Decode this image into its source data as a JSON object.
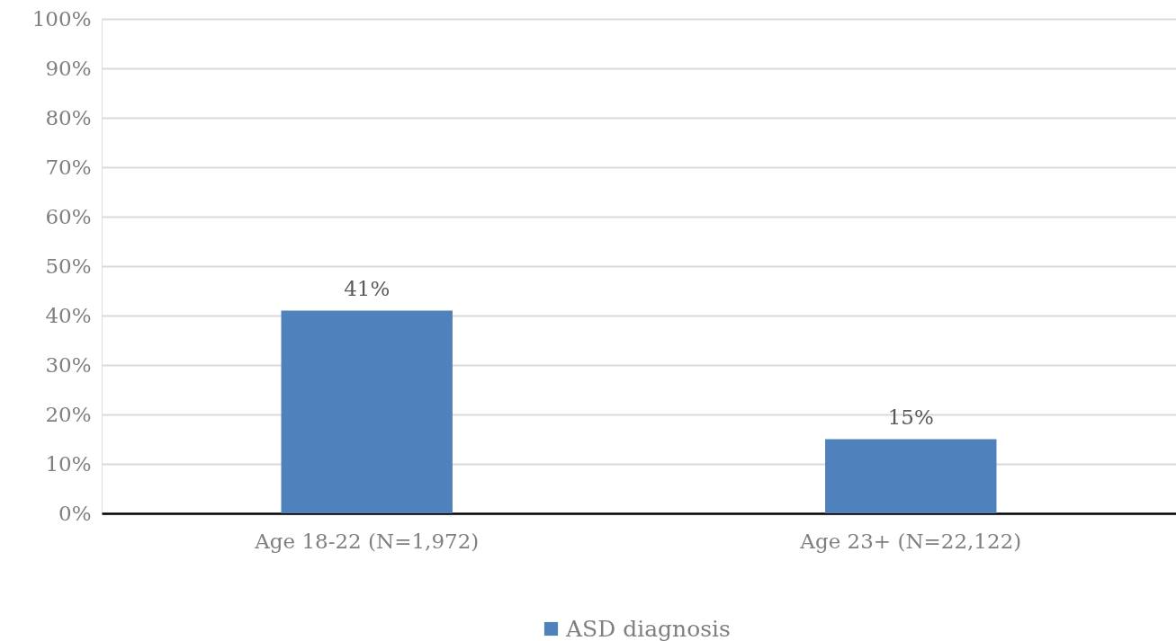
{
  "chart_data": {
    "type": "bar",
    "categories": [
      "Age 18-22 (N=1,972)",
      "Age 23+ (N=22,122)"
    ],
    "series": [
      {
        "name": "ASD diagnosis",
        "color": "#4f81bd",
        "values": [
          41,
          15
        ],
        "value_labels": [
          "41%",
          "15%"
        ]
      }
    ],
    "ylim": [
      0,
      100
    ],
    "yticks": [
      {
        "value": 0,
        "label": "0%"
      },
      {
        "value": 10,
        "label": "10%"
      },
      {
        "value": 20,
        "label": "20%"
      },
      {
        "value": 30,
        "label": "30%"
      },
      {
        "value": 40,
        "label": "40%"
      },
      {
        "value": 50,
        "label": "50%"
      },
      {
        "value": 60,
        "label": "60%"
      },
      {
        "value": 70,
        "label": "70%"
      },
      {
        "value": 80,
        "label": "80%"
      },
      {
        "value": 90,
        "label": "90%"
      },
      {
        "value": 100,
        "label": "100%"
      }
    ],
    "grid": "y",
    "legend": "bottom"
  }
}
